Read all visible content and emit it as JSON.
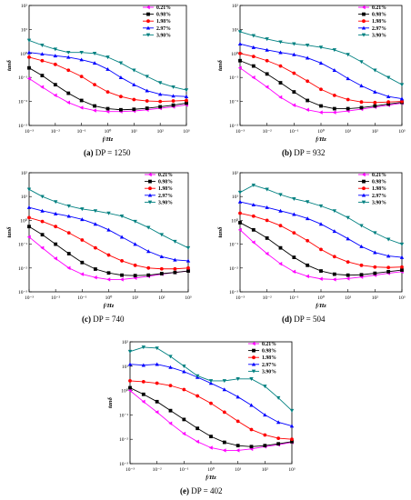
{
  "figure": {
    "captions": [
      {
        "letter": "(a)",
        "text": "DP = 1250"
      },
      {
        "letter": "(b)",
        "text": "DP = 932"
      },
      {
        "letter": "(c)",
        "text": "DP = 740"
      },
      {
        "letter": "(d)",
        "text": "DP = 504"
      },
      {
        "letter": "(e)",
        "text": "DP = 402"
      }
    ]
  },
  "colors": {
    "0.21%": "#ff00ff",
    "0.98%": "#000000",
    "1.98%": "#ff0000",
    "2.97%": "#0000ff",
    "3.90%": "#008080"
  },
  "chart_data": [
    {
      "type": "line",
      "panel": "a",
      "title": "DP = 1250",
      "xlabel": "f/Hz",
      "ylabel": "tanδ",
      "xscale": "log",
      "yscale": "log",
      "xlim": [
        0.001,
        1000
      ],
      "ylim": [
        0.001,
        100
      ],
      "xticks": [
        "10⁻³",
        "10⁻²",
        "10⁻¹",
        "10⁰",
        "10¹",
        "10²",
        "10³"
      ],
      "yticks": [
        "10⁻³",
        "10⁻²",
        "10⁻¹",
        "10⁰",
        "10¹",
        "10²"
      ],
      "x": [
        0.001,
        0.00316,
        0.01,
        0.0316,
        0.1,
        0.316,
        1,
        3.16,
        10,
        31.6,
        100,
        316,
        1000
      ],
      "series": [
        {
          "name": "0.21%",
          "marker": "triangle-left",
          "values": [
            0.09,
            0.04,
            0.018,
            0.009,
            0.0055,
            0.0042,
            0.0038,
            0.0038,
            0.004,
            0.0045,
            0.0052,
            0.006,
            0.0072
          ]
        },
        {
          "name": "0.98%",
          "marker": "square",
          "values": [
            0.25,
            0.12,
            0.05,
            0.022,
            0.011,
            0.0065,
            0.005,
            0.0045,
            0.0047,
            0.0052,
            0.006,
            0.007,
            0.0085
          ]
        },
        {
          "name": "1.98%",
          "marker": "circle",
          "values": [
            0.7,
            0.5,
            0.35,
            0.2,
            0.11,
            0.05,
            0.025,
            0.016,
            0.012,
            0.0105,
            0.01,
            0.0105,
            0.011
          ]
        },
        {
          "name": "2.97%",
          "marker": "triangle-up",
          "values": [
            1.1,
            0.95,
            0.8,
            0.7,
            0.55,
            0.4,
            0.22,
            0.1,
            0.05,
            0.028,
            0.02,
            0.017,
            0.016
          ]
        },
        {
          "name": "3.90%",
          "marker": "triangle-down",
          "values": [
            3.5,
            2.2,
            1.5,
            1.1,
            1.1,
            1.0,
            0.7,
            0.4,
            0.2,
            0.11,
            0.06,
            0.04,
            0.03
          ]
        }
      ]
    },
    {
      "type": "line",
      "panel": "b",
      "title": "DP = 932",
      "xlabel": "f/Hz",
      "ylabel": "tanδ",
      "xscale": "log",
      "yscale": "log",
      "xlim": [
        0.001,
        1000
      ],
      "ylim": [
        0.001,
        100
      ],
      "xticks": [
        "10⁻³",
        "10⁻²",
        "10⁻¹",
        "10⁰",
        "10¹",
        "10²",
        "10³"
      ],
      "yticks": [
        "10⁻³",
        "10⁻²",
        "10⁻¹",
        "10⁰",
        "10¹",
        "10²"
      ],
      "x": [
        0.001,
        0.00316,
        0.01,
        0.0316,
        0.1,
        0.316,
        1,
        3.16,
        10,
        31.6,
        100,
        316,
        1000
      ],
      "series": [
        {
          "name": "0.21%",
          "marker": "triangle-left",
          "values": [
            0.25,
            0.1,
            0.04,
            0.015,
            0.007,
            0.0045,
            0.0035,
            0.0035,
            0.004,
            0.0048,
            0.0058,
            0.007,
            0.0085
          ]
        },
        {
          "name": "0.98%",
          "marker": "square",
          "values": [
            0.5,
            0.3,
            0.14,
            0.06,
            0.025,
            0.011,
            0.0065,
            0.005,
            0.005,
            0.0055,
            0.0065,
            0.0078,
            0.0092
          ]
        },
        {
          "name": "1.98%",
          "marker": "circle",
          "values": [
            1.0,
            0.75,
            0.5,
            0.3,
            0.15,
            0.07,
            0.032,
            0.018,
            0.012,
            0.0095,
            0.009,
            0.0095,
            0.01
          ]
        },
        {
          "name": "2.97%",
          "marker": "triangle-up",
          "values": [
            2.5,
            1.8,
            1.4,
            1.1,
            0.9,
            0.65,
            0.4,
            0.2,
            0.09,
            0.045,
            0.025,
            0.016,
            0.013
          ]
        },
        {
          "name": "3.90%",
          "marker": "triangle-down",
          "values": [
            8,
            5.5,
            4,
            3,
            2.5,
            2.2,
            1.8,
            1.4,
            0.9,
            0.45,
            0.2,
            0.1,
            0.05
          ]
        }
      ]
    },
    {
      "type": "line",
      "panel": "c",
      "title": "DP = 740",
      "xlabel": "f/Hz",
      "ylabel": "tanδ",
      "xscale": "log",
      "yscale": "log",
      "xlim": [
        0.001,
        1000
      ],
      "ylim": [
        0.001,
        100
      ],
      "xticks": [
        "10⁻³",
        "10⁻²",
        "10⁻¹",
        "10⁰",
        "10¹",
        "10²",
        "10³"
      ],
      "yticks": [
        "10⁻³",
        "10⁻²",
        "10⁻¹",
        "10⁰",
        "10¹",
        "10²"
      ],
      "x": [
        0.001,
        0.00316,
        0.01,
        0.0316,
        0.1,
        0.316,
        1,
        3.16,
        10,
        31.6,
        100,
        316,
        1000
      ],
      "series": [
        {
          "name": "0.21%",
          "marker": "triangle-left",
          "values": [
            0.2,
            0.07,
            0.025,
            0.01,
            0.0055,
            0.004,
            0.0033,
            0.0033,
            0.0038,
            0.0045,
            0.0055,
            0.0065,
            0.0075
          ]
        },
        {
          "name": "0.98%",
          "marker": "square",
          "values": [
            0.55,
            0.25,
            0.1,
            0.04,
            0.017,
            0.009,
            0.0062,
            0.005,
            0.0048,
            0.005,
            0.0058,
            0.0065,
            0.0075
          ]
        },
        {
          "name": "1.98%",
          "marker": "circle",
          "values": [
            1.3,
            0.9,
            0.55,
            0.3,
            0.15,
            0.07,
            0.035,
            0.02,
            0.013,
            0.01,
            0.0092,
            0.0092,
            0.01
          ]
        },
        {
          "name": "2.97%",
          "marker": "triangle-up",
          "values": [
            3.5,
            2.5,
            1.9,
            1.5,
            1.1,
            0.7,
            0.4,
            0.2,
            0.1,
            0.05,
            0.03,
            0.022,
            0.02
          ]
        },
        {
          "name": "3.90%",
          "marker": "triangle-down",
          "values": [
            20,
            10,
            6,
            4,
            3,
            2.5,
            2,
            1.5,
            0.9,
            0.5,
            0.25,
            0.13,
            0.07
          ]
        }
      ]
    },
    {
      "type": "line",
      "panel": "d",
      "title": "DP = 504",
      "xlabel": "f/Hz",
      "ylabel": "tanδ",
      "xscale": "log",
      "yscale": "log",
      "xlim": [
        0.001,
        1000
      ],
      "ylim": [
        0.001,
        100
      ],
      "xticks": [
        "10⁻³",
        "10⁻²",
        "10⁻¹",
        "10⁰",
        "10¹",
        "10²",
        "10³"
      ],
      "yticks": [
        "10⁻³",
        "10⁻²",
        "10⁻¹",
        "10⁰",
        "10¹",
        "10²"
      ],
      "x": [
        0.001,
        0.00316,
        0.01,
        0.0316,
        0.1,
        0.316,
        1,
        3.16,
        10,
        31.6,
        100,
        316,
        1000
      ],
      "series": [
        {
          "name": "0.21%",
          "marker": "triangle-left",
          "values": [
            0.4,
            0.12,
            0.04,
            0.015,
            0.007,
            0.0045,
            0.0035,
            0.0033,
            0.0036,
            0.0042,
            0.005,
            0.006,
            0.007
          ]
        },
        {
          "name": "0.98%",
          "marker": "square",
          "values": [
            0.8,
            0.4,
            0.18,
            0.07,
            0.028,
            0.013,
            0.0075,
            0.0055,
            0.005,
            0.0052,
            0.006,
            0.007,
            0.0082
          ]
        },
        {
          "name": "1.98%",
          "marker": "circle",
          "values": [
            2,
            1.5,
            1,
            0.6,
            0.3,
            0.14,
            0.06,
            0.03,
            0.018,
            0.013,
            0.011,
            0.0105,
            0.011
          ]
        },
        {
          "name": "2.97%",
          "marker": "triangle-up",
          "values": [
            6,
            4.5,
            3.5,
            2.5,
            1.8,
            1.2,
            0.7,
            0.35,
            0.17,
            0.08,
            0.045,
            0.032,
            0.028
          ]
        },
        {
          "name": "3.90%",
          "marker": "triangle-down",
          "values": [
            15,
            30,
            20,
            12,
            8,
            6,
            4,
            2.5,
            1.3,
            0.6,
            0.3,
            0.16,
            0.1
          ]
        }
      ]
    },
    {
      "type": "line",
      "panel": "e",
      "title": "DP = 402",
      "xlabel": "f/Hz",
      "ylabel": "tanδ",
      "xscale": "log",
      "yscale": "log",
      "xlim": [
        0.001,
        1000
      ],
      "ylim": [
        0.001,
        100
      ],
      "xticks": [
        "10⁻³",
        "10⁻²",
        "10⁻¹",
        "10⁰",
        "10¹",
        "10²",
        "10³"
      ],
      "yticks": [
        "10⁻³",
        "10⁻²",
        "10⁻¹",
        "10⁰",
        "10¹",
        "10²"
      ],
      "x": [
        0.001,
        0.00316,
        0.01,
        0.0316,
        0.1,
        0.316,
        1,
        3.16,
        10,
        31.6,
        100,
        316,
        1000
      ],
      "series": [
        {
          "name": "0.21%",
          "marker": "triangle-left",
          "values": [
            1.0,
            0.35,
            0.13,
            0.045,
            0.017,
            0.008,
            0.0045,
            0.0035,
            0.0035,
            0.004,
            0.005,
            0.006,
            0.0075
          ]
        },
        {
          "name": "0.98%",
          "marker": "square",
          "values": [
            1.3,
            0.7,
            0.35,
            0.15,
            0.065,
            0.028,
            0.013,
            0.0075,
            0.0055,
            0.005,
            0.0055,
            0.0065,
            0.008
          ]
        },
        {
          "name": "1.98%",
          "marker": "circle",
          "values": [
            2.5,
            2.3,
            2,
            1.6,
            1.1,
            0.6,
            0.3,
            0.13,
            0.055,
            0.025,
            0.015,
            0.011,
            0.01
          ]
        },
        {
          "name": "2.97%",
          "marker": "triangle-up",
          "values": [
            12,
            11,
            12,
            9,
            6,
            3.5,
            2,
            1.1,
            0.55,
            0.25,
            0.1,
            0.05,
            0.035
          ]
        },
        {
          "name": "3.90%",
          "marker": "triangle-down",
          "values": [
            40,
            60,
            55,
            25,
            10,
            4,
            2.5,
            2.5,
            3,
            3,
            1.5,
            0.5,
            0.15
          ]
        }
      ]
    }
  ]
}
